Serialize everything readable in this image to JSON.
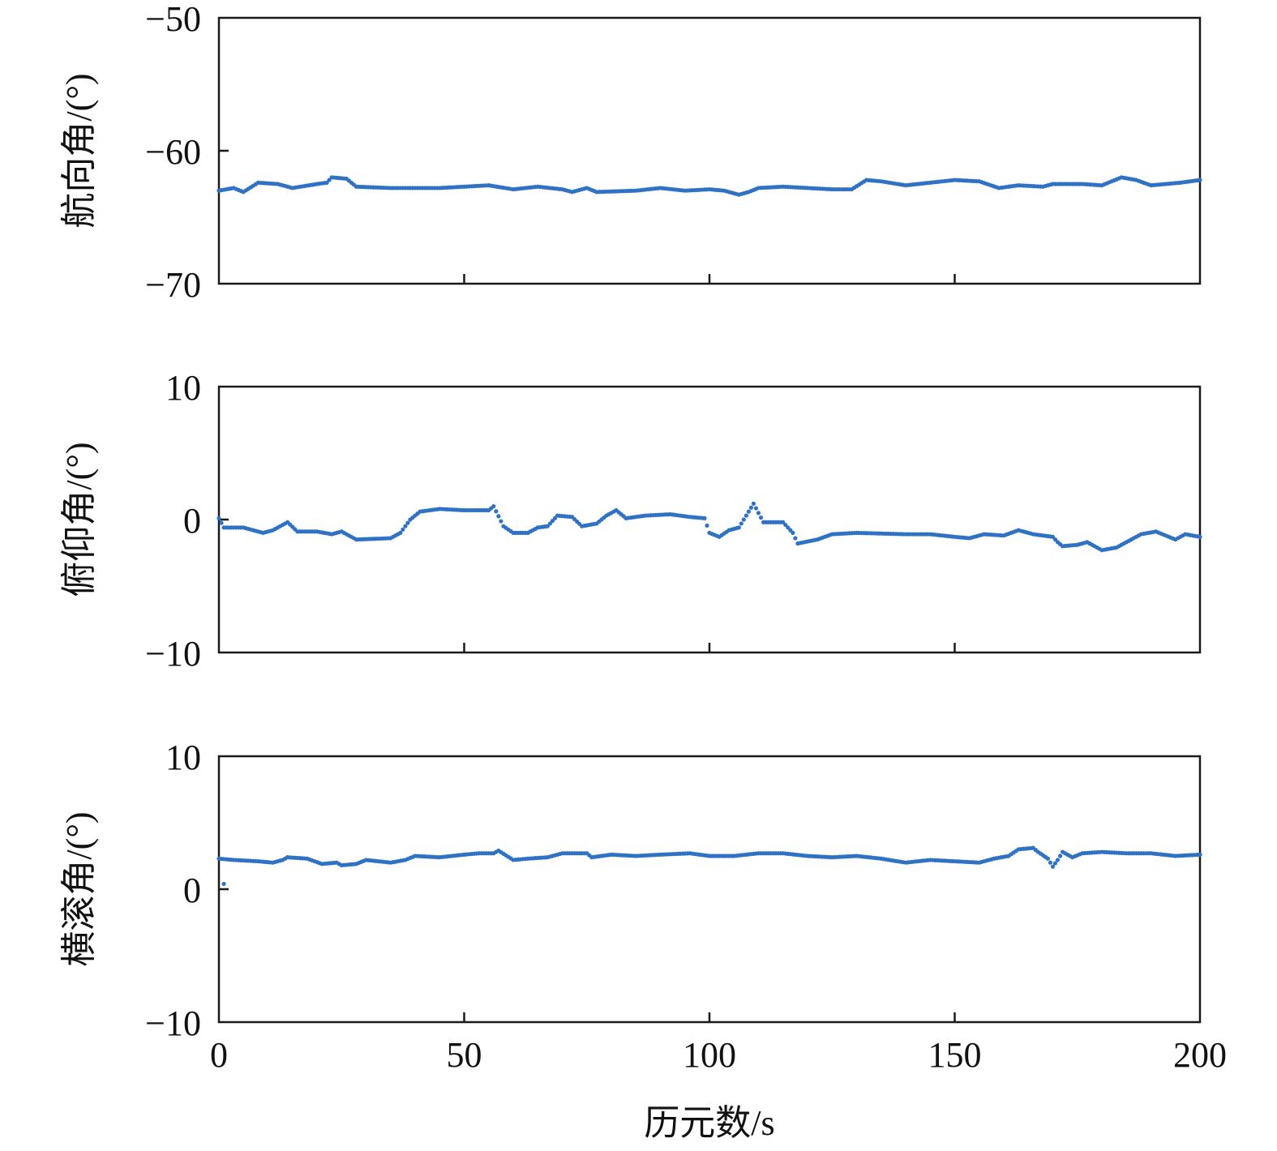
{
  "chart_data": {
    "type": "scatter",
    "xlabel": "历元数/s",
    "xlim": [
      0,
      200
    ],
    "xticks": [
      0,
      50,
      100,
      150,
      200
    ],
    "x_tick_labels": [
      "0",
      "50",
      "100",
      "150",
      "200"
    ],
    "marker_color": "#2f72c4",
    "panels": [
      {
        "ylabel": "航向角/(°)",
        "ylim": [
          -70,
          -50
        ],
        "yticks": [
          -70,
          -60,
          -50
        ],
        "y_tick_labels": [
          "−70",
          "−60",
          "−50"
        ],
        "x_tick_labels_shown": false,
        "keyframes": [
          [
            0,
            -63.0
          ],
          [
            3,
            -62.8
          ],
          [
            5,
            -63.1
          ],
          [
            8,
            -62.4
          ],
          [
            12,
            -62.5
          ],
          [
            15,
            -62.8
          ],
          [
            20,
            -62.5
          ],
          [
            22,
            -62.4
          ],
          [
            23,
            -62.0
          ],
          [
            26,
            -62.1
          ],
          [
            28,
            -62.7
          ],
          [
            35,
            -62.8
          ],
          [
            45,
            -62.8
          ],
          [
            50,
            -62.7
          ],
          [
            55,
            -62.6
          ],
          [
            60,
            -62.9
          ],
          [
            65,
            -62.7
          ],
          [
            70,
            -62.9
          ],
          [
            72,
            -63.1
          ],
          [
            75,
            -62.8
          ],
          [
            77,
            -63.1
          ],
          [
            85,
            -63.0
          ],
          [
            90,
            -62.8
          ],
          [
            95,
            -63.0
          ],
          [
            100,
            -62.9
          ],
          [
            103,
            -63.0
          ],
          [
            106,
            -63.3
          ],
          [
            108,
            -63.1
          ],
          [
            110,
            -62.8
          ],
          [
            115,
            -62.7
          ],
          [
            120,
            -62.8
          ],
          [
            125,
            -62.9
          ],
          [
            129,
            -62.9
          ],
          [
            132,
            -62.2
          ],
          [
            135,
            -62.3
          ],
          [
            140,
            -62.6
          ],
          [
            145,
            -62.4
          ],
          [
            150,
            -62.2
          ],
          [
            155,
            -62.3
          ],
          [
            159,
            -62.8
          ],
          [
            163,
            -62.6
          ],
          [
            168,
            -62.7
          ],
          [
            170,
            -62.5
          ],
          [
            176,
            -62.5
          ],
          [
            180,
            -62.6
          ],
          [
            184,
            -62.0
          ],
          [
            187,
            -62.2
          ],
          [
            190,
            -62.6
          ],
          [
            196,
            -62.4
          ],
          [
            200,
            -62.2
          ]
        ]
      },
      {
        "ylabel": "俯仰角/(°)",
        "ylim": [
          -10,
          10
        ],
        "yticks": [
          -10,
          0,
          10
        ],
        "y_tick_labels": [
          "−10",
          "0",
          "10"
        ],
        "x_tick_labels_shown": false,
        "keyframes": [
          [
            0,
            0.1
          ],
          [
            1,
            -0.6
          ],
          [
            5,
            -0.6
          ],
          [
            9,
            -1.0
          ],
          [
            11,
            -0.8
          ],
          [
            14,
            -0.2
          ],
          [
            16,
            -0.9
          ],
          [
            20,
            -0.9
          ],
          [
            23,
            -1.1
          ],
          [
            25,
            -0.9
          ],
          [
            28,
            -1.5
          ],
          [
            35,
            -1.4
          ],
          [
            37,
            -1.0
          ],
          [
            39,
            0.0
          ],
          [
            41,
            0.6
          ],
          [
            45,
            0.8
          ],
          [
            50,
            0.7
          ],
          [
            55,
            0.7
          ],
          [
            56,
            1.0
          ],
          [
            58,
            -0.5
          ],
          [
            60,
            -1.0
          ],
          [
            63,
            -1.0
          ],
          [
            65,
            -0.6
          ],
          [
            67,
            -0.5
          ],
          [
            69,
            0.3
          ],
          [
            72,
            0.2
          ],
          [
            74,
            -0.5
          ],
          [
            77,
            -0.3
          ],
          [
            79,
            0.3
          ],
          [
            81,
            0.7
          ],
          [
            83,
            0.1
          ],
          [
            87,
            0.3
          ],
          [
            92,
            0.4
          ],
          [
            96,
            0.2
          ],
          [
            99,
            0.1
          ],
          [
            100,
            -1.0
          ],
          [
            102,
            -1.3
          ],
          [
            104,
            -0.8
          ],
          [
            106,
            -0.6
          ],
          [
            108,
            0.6
          ],
          [
            109,
            1.2
          ],
          [
            111,
            -0.2
          ],
          [
            115,
            -0.2
          ],
          [
            117,
            -1.0
          ],
          [
            118,
            -1.8
          ],
          [
            122,
            -1.5
          ],
          [
            125,
            -1.1
          ],
          [
            130,
            -1.0
          ],
          [
            140,
            -1.1
          ],
          [
            145,
            -1.1
          ],
          [
            150,
            -1.3
          ],
          [
            153,
            -1.4
          ],
          [
            156,
            -1.1
          ],
          [
            160,
            -1.2
          ],
          [
            163,
            -0.8
          ],
          [
            166,
            -1.1
          ],
          [
            170,
            -1.3
          ],
          [
            171,
            -1.7
          ],
          [
            172,
            -2.0
          ],
          [
            175,
            -1.9
          ],
          [
            177,
            -1.7
          ],
          [
            180,
            -2.3
          ],
          [
            183,
            -2.1
          ],
          [
            186,
            -1.5
          ],
          [
            188,
            -1.1
          ],
          [
            191,
            -0.9
          ],
          [
            193,
            -1.2
          ],
          [
            195,
            -1.5
          ],
          [
            197,
            -1.1
          ],
          [
            200,
            -1.3
          ]
        ]
      },
      {
        "ylabel": "横滚角/(°)",
        "ylim": [
          -10,
          10
        ],
        "yticks": [
          -10,
          0,
          10
        ],
        "y_tick_labels": [
          "−10",
          "0",
          "10"
        ],
        "x_tick_labels_shown": true,
        "keyframes": [
          [
            0,
            2.3
          ],
          [
            3,
            2.2
          ],
          [
            8,
            2.1
          ],
          [
            11,
            2.0
          ],
          [
            13,
            2.2
          ],
          [
            14,
            2.4
          ],
          [
            18,
            2.3
          ],
          [
            21,
            1.9
          ],
          [
            24,
            2.0
          ],
          [
            25,
            1.8
          ],
          [
            28,
            1.9
          ],
          [
            30,
            2.2
          ],
          [
            35,
            2.0
          ],
          [
            38,
            2.2
          ],
          [
            40,
            2.5
          ],
          [
            45,
            2.4
          ],
          [
            50,
            2.6
          ],
          [
            53,
            2.7
          ],
          [
            56,
            2.7
          ],
          [
            57,
            2.9
          ],
          [
            60,
            2.2
          ],
          [
            63,
            2.3
          ],
          [
            67,
            2.4
          ],
          [
            70,
            2.7
          ],
          [
            75,
            2.7
          ],
          [
            76,
            2.4
          ],
          [
            80,
            2.6
          ],
          [
            85,
            2.5
          ],
          [
            90,
            2.6
          ],
          [
            96,
            2.7
          ],
          [
            100,
            2.5
          ],
          [
            105,
            2.5
          ],
          [
            110,
            2.7
          ],
          [
            115,
            2.7
          ],
          [
            120,
            2.5
          ],
          [
            125,
            2.4
          ],
          [
            130,
            2.5
          ],
          [
            135,
            2.3
          ],
          [
            140,
            2.0
          ],
          [
            145,
            2.2
          ],
          [
            150,
            2.1
          ],
          [
            155,
            2.0
          ],
          [
            158,
            2.3
          ],
          [
            161,
            2.5
          ],
          [
            163,
            3.0
          ],
          [
            166,
            3.1
          ],
          [
            167,
            2.8
          ],
          [
            169,
            2.3
          ],
          [
            170,
            1.7
          ],
          [
            171,
            2.2
          ],
          [
            172,
            2.8
          ],
          [
            174,
            2.4
          ],
          [
            176,
            2.7
          ],
          [
            180,
            2.8
          ],
          [
            185,
            2.7
          ],
          [
            190,
            2.7
          ],
          [
            195,
            2.5
          ],
          [
            200,
            2.6
          ]
        ],
        "outliers": [
          [
            1,
            0.4
          ]
        ]
      }
    ]
  }
}
